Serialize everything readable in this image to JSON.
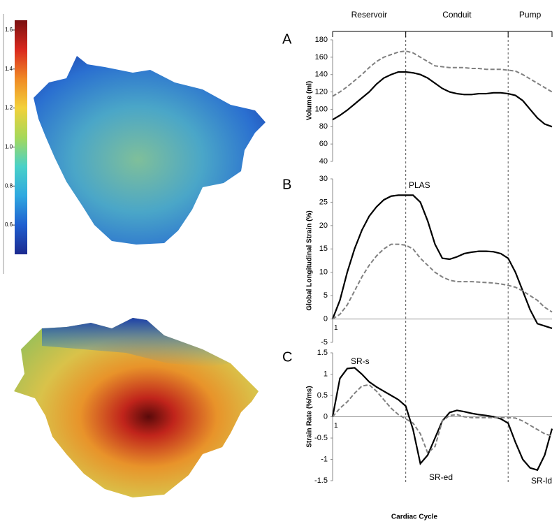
{
  "chart_data": [
    {
      "type": "colorbar",
      "ylim": [
        0.45,
        1.65
      ],
      "yticks": [
        0.6,
        0.8,
        {
          "value": 1,
          "label": "1.0"
        },
        1.2,
        1.4,
        1.6
      ],
      "colormap": [
        "#1c2a8f",
        "#1f5fd0",
        "#2fa8e0",
        "#49d1c8",
        "#a6d85a",
        "#f2d13a",
        "#f08a25",
        "#d9281e",
        "#7a1010"
      ]
    },
    {
      "type": "line",
      "panel": "A",
      "ylabel": "Volume (ml)",
      "xlim": [
        1,
        31
      ],
      "ylim": [
        40,
        180
      ],
      "yticks": [
        40,
        60,
        80,
        100,
        120,
        140,
        160,
        180
      ],
      "phases": [
        "Reservoir",
        "Conduit",
        "Pump"
      ],
      "phase_bounds": [
        1,
        11,
        25,
        31
      ],
      "x": [
        1,
        2,
        3,
        4,
        5,
        6,
        7,
        8,
        9,
        10,
        11,
        12,
        13,
        14,
        15,
        16,
        17,
        18,
        19,
        20,
        21,
        22,
        23,
        24,
        25,
        26,
        27,
        28,
        29,
        30,
        31
      ],
      "series": [
        {
          "color": "#000000",
          "dashed": false,
          "values": [
            88,
            93,
            99,
            106,
            113,
            120,
            129,
            136,
            140,
            143,
            143,
            142,
            140,
            136,
            130,
            124,
            120,
            118,
            117,
            117,
            118,
            118,
            119,
            119,
            118,
            116,
            110,
            100,
            90,
            83,
            80
          ]
        },
        {
          "color": "#808080",
          "dashed": true,
          "values": [
            115,
            120,
            126,
            133,
            140,
            148,
            155,
            160,
            163,
            166,
            167,
            165,
            160,
            155,
            150,
            149,
            148,
            148,
            148,
            147,
            147,
            146,
            146,
            146,
            145,
            144,
            140,
            135,
            130,
            125,
            120
          ]
        }
      ]
    },
    {
      "type": "line",
      "panel": "B",
      "ylabel": "Global Longitudinal Strain (%)",
      "xlim": [
        1,
        31
      ],
      "xticks": [
        1
      ],
      "ylim": [
        -5,
        30
      ],
      "yticks": [
        -5,
        0,
        5,
        10,
        15,
        20,
        25,
        30
      ],
      "annotations": [
        "PLAS"
      ],
      "x": [
        1,
        2,
        3,
        4,
        5,
        6,
        7,
        8,
        9,
        10,
        11,
        12,
        13,
        14,
        15,
        16,
        17,
        18,
        19,
        20,
        21,
        22,
        23,
        24,
        25,
        26,
        27,
        28,
        29,
        30,
        31
      ],
      "series": [
        {
          "color": "#000000",
          "dashed": false,
          "values": [
            0,
            4,
            10,
            15,
            19,
            22,
            24,
            25.5,
            26.3,
            26.5,
            26.5,
            26.5,
            25,
            21,
            16,
            13,
            12.8,
            13.3,
            14,
            14.3,
            14.5,
            14.5,
            14.4,
            14,
            13,
            10,
            6,
            2,
            -1,
            -1.5,
            -2
          ]
        },
        {
          "color": "#808080",
          "dashed": true,
          "values": [
            0,
            1,
            3,
            6,
            9,
            11.5,
            13.5,
            15,
            16,
            16,
            15.8,
            15,
            13,
            11.5,
            10,
            9,
            8.3,
            8,
            8,
            8,
            7.9,
            7.8,
            7.7,
            7.5,
            7.2,
            6.8,
            6,
            5,
            4,
            2.5,
            1.5
          ]
        }
      ]
    },
    {
      "type": "line",
      "panel": "C",
      "ylabel": "Strain Rate (%/ms)",
      "xlabel": "Cardiac Cycle",
      "xlim": [
        1,
        31
      ],
      "xticks": [
        1
      ],
      "ylim": [
        -1.5,
        1.5
      ],
      "yticks": [
        -1.5,
        -1,
        -0.5,
        0,
        0.5,
        1,
        1.5
      ],
      "annotations": [
        "SR-s",
        "SR-ed",
        "SR-ld"
      ],
      "x": [
        1,
        2,
        3,
        4,
        5,
        6,
        7,
        8,
        9,
        10,
        11,
        12,
        13,
        14,
        15,
        16,
        17,
        18,
        19,
        20,
        21,
        22,
        23,
        24,
        25,
        26,
        27,
        28,
        29,
        30,
        31
      ],
      "series": [
        {
          "color": "#000000",
          "dashed": false,
          "values": [
            0,
            0.9,
            1.13,
            1.15,
            1.0,
            0.82,
            0.7,
            0.6,
            0.5,
            0.4,
            0.25,
            -0.3,
            -1.1,
            -0.9,
            -0.5,
            -0.1,
            0.1,
            0.15,
            0.12,
            0.08,
            0.05,
            0.03,
            0,
            -0.05,
            -0.15,
            -0.6,
            -1.0,
            -1.2,
            -1.25,
            -0.9,
            -0.28
          ]
        },
        {
          "color": "#808080",
          "dashed": true,
          "values": [
            0,
            0.2,
            0.35,
            0.55,
            0.72,
            0.75,
            0.6,
            0.4,
            0.2,
            0.05,
            -0.05,
            -0.15,
            -0.4,
            -0.85,
            -0.7,
            -0.1,
            0.03,
            0.05,
            0,
            -0.02,
            -0.02,
            -0.02,
            -0.02,
            -0.02,
            -0.02,
            -0.03,
            -0.1,
            -0.2,
            -0.3,
            -0.4,
            -0.45
          ]
        }
      ]
    }
  ]
}
